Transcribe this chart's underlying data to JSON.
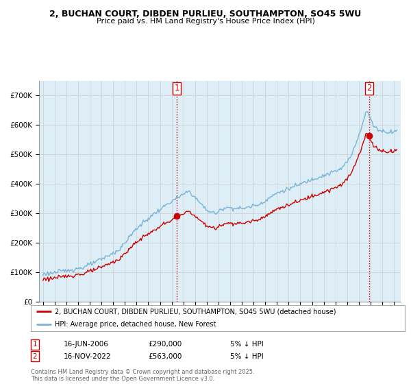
{
  "title": "2, BUCHAN COURT, DIBDEN PURLIEU, SOUTHAMPTON, SO45 5WU",
  "subtitle": "Price paid vs. HM Land Registry's House Price Index (HPI)",
  "hpi_label": "HPI: Average price, detached house, New Forest",
  "property_label": "2, BUCHAN COURT, DIBDEN PURLIEU, SOUTHAMPTON, SO45 5WU (detached house)",
  "hpi_color": "#7ab3d4",
  "hpi_fill_color": "#ddeef7",
  "property_color": "#cc0000",
  "sale1_date_str": "16-JUN-2006",
  "sale1_year": 2006,
  "sale1_month": 6,
  "sale1_day": 16,
  "sale1_price": 290000,
  "sale1_label": "1",
  "sale1_pct": "5% ↓ HPI",
  "sale2_date_str": "16-NOV-2022",
  "sale2_year": 2022,
  "sale2_month": 11,
  "sale2_day": 16,
  "sale2_price": 563000,
  "sale2_label": "2",
  "sale2_pct": "5% ↓ HPI",
  "vline_color": "#cc0000",
  "ylim_min": 0,
  "ylim_max": 750000,
  "yticks": [
    0,
    100000,
    200000,
    300000,
    400000,
    500000,
    600000,
    700000
  ],
  "ytick_labels": [
    "£0",
    "£100K",
    "£200K",
    "£300K",
    "£400K",
    "£500K",
    "£600K",
    "£700K"
  ],
  "background_color": "#ffffff",
  "grid_color": "#cccccc",
  "footer": "Contains HM Land Registry data © Crown copyright and database right 2025.\nThis data is licensed under the Open Government Licence v3.0."
}
